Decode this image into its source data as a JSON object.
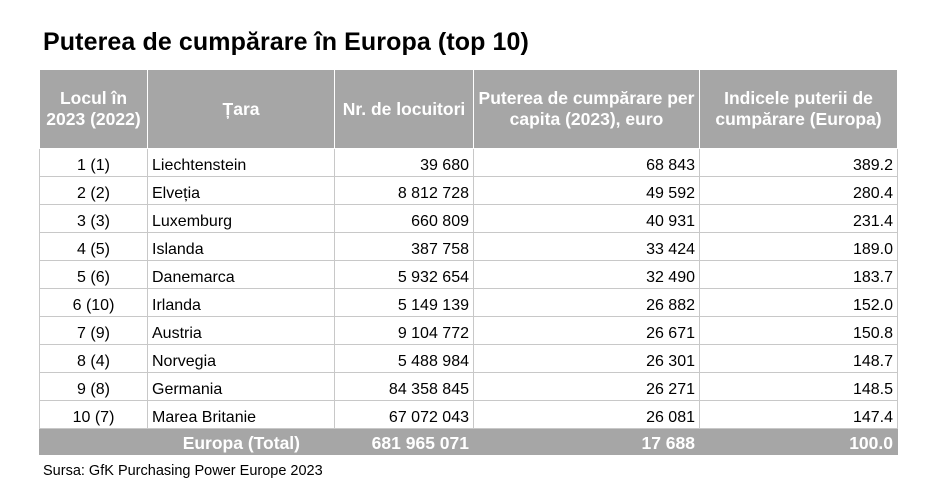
{
  "title": "Puterea de cumpărare în Europa (top 10)",
  "table": {
    "headers": {
      "rank": "Locul în 2023 (2022)",
      "country": "Țara",
      "population": "Nr. de locuitori",
      "per_capita": "Puterea de cumpărare per capita (2023), euro",
      "index": "Indicele puterii de cumpărare (Europa)"
    },
    "rows": [
      {
        "rank": "1 (1)",
        "country": "Liechtenstein",
        "population": "39 680",
        "per_capita": "68 843",
        "index": "389.2"
      },
      {
        "rank": "2 (2)",
        "country": "Elveția",
        "population": "8 812 728",
        "per_capita": "49 592",
        "index": "280.4"
      },
      {
        "rank": "3 (3)",
        "country": "Luxemburg",
        "population": "660 809",
        "per_capita": "40 931",
        "index": "231.4"
      },
      {
        "rank": "4 (5)",
        "country": "Islanda",
        "population": "387 758",
        "per_capita": "33 424",
        "index": "189.0"
      },
      {
        "rank": "5 (6)",
        "country": "Danemarca",
        "population": "5 932 654",
        "per_capita": "32 490",
        "index": "183.7"
      },
      {
        "rank": "6 (10)",
        "country": "Irlanda",
        "population": "5 149 139",
        "per_capita": "26 882",
        "index": "152.0"
      },
      {
        "rank": "7 (9)",
        "country": "Austria",
        "population": "9 104 772",
        "per_capita": "26 671",
        "index": "150.8"
      },
      {
        "rank": "8 (4)",
        "country": "Norvegia",
        "population": "5 488 984",
        "per_capita": "26 301",
        "index": "148.7"
      },
      {
        "rank": "9 (8)",
        "country": "Germania",
        "population": "84 358 845",
        "per_capita": "26 271",
        "index": "148.5"
      },
      {
        "rank": "10 (7)",
        "country": "Marea Britanie",
        "population": "67 072  043",
        "per_capita": "26 081",
        "index": "147.4"
      }
    ],
    "total": {
      "label": "Europa (Total)",
      "population": "681 965 071",
      "per_capita": "17 688",
      "index": "100.0"
    }
  },
  "source": "Sursa: GfK Purchasing Power Europe 2023",
  "colors": {
    "header_bg": "#a6a6a6",
    "header_text": "#ffffff",
    "grid": "#c8c8c8"
  }
}
